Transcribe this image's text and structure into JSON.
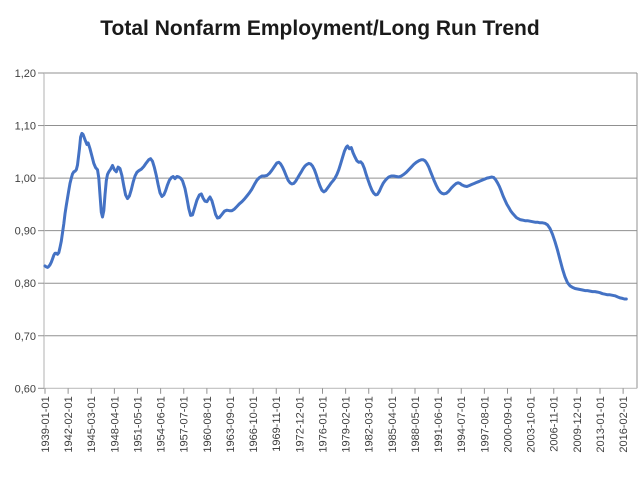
{
  "chart_data": {
    "type": "line",
    "title": "Total Nonfarm Employment/Long Run Trend",
    "x_axis": {
      "start_date": "1939-01-01",
      "frequency": "monthly",
      "unit": "months since 1939-01-01",
      "tick_interval_months": 37,
      "tick_labels": [
        "1939-01-01",
        "1942-02-01",
        "1945-03-01",
        "1948-04-01",
        "1951-05-01",
        "1954-06-01",
        "1957-07-01",
        "1960-08-01",
        "1963-09-01",
        "1966-10-01",
        "1969-11-01",
        "1972-12-01",
        "1976-01-01",
        "1979-02-01",
        "1982-03-01",
        "1985-04-01",
        "1988-05-01",
        "1991-06-01",
        "1994-07-01",
        "1997-08-01",
        "2000-09-01",
        "2003-10-01",
        "2006-11-01",
        "2009-12-01",
        "2013-01-01",
        "2016-02-01"
      ]
    },
    "y_axis": {
      "min": 0.6,
      "max": 1.2,
      "tick_step": 0.1,
      "decimal_separator": ",",
      "tick_labels": [
        "1,20",
        "1,10",
        "1,00",
        "0,90",
        "0,80",
        "0,70",
        "0,60"
      ],
      "tick_values": [
        1.2,
        1.1,
        1.0,
        0.9,
        0.8,
        0.7,
        0.6
      ]
    },
    "grid": true,
    "legend": false,
    "series": [
      {
        "name": "Total Nonfarm Employment / Long Run Trend",
        "color": "#4472C4",
        "points": [
          [
            0,
            0.833
          ],
          [
            2,
            0.831
          ],
          [
            4,
            0.83
          ],
          [
            6,
            0.832
          ],
          [
            8,
            0.835
          ],
          [
            10,
            0.84
          ],
          [
            12,
            0.846
          ],
          [
            14,
            0.853
          ],
          [
            16,
            0.857
          ],
          [
            18,
            0.857
          ],
          [
            20,
            0.855
          ],
          [
            22,
            0.858
          ],
          [
            24,
            0.868
          ],
          [
            26,
            0.88
          ],
          [
            28,
            0.896
          ],
          [
            30,
            0.913
          ],
          [
            32,
            0.932
          ],
          [
            34,
            0.948
          ],
          [
            36,
            0.962
          ],
          [
            38,
            0.977
          ],
          [
            40,
            0.99
          ],
          [
            42,
            1.0
          ],
          [
            44,
            1.008
          ],
          [
            46,
            1.012
          ],
          [
            48,
            1.013
          ],
          [
            50,
            1.016
          ],
          [
            52,
            1.025
          ],
          [
            55,
            1.055
          ],
          [
            57,
            1.078
          ],
          [
            59,
            1.085
          ],
          [
            61,
            1.083
          ],
          [
            64,
            1.073
          ],
          [
            67,
            1.064
          ],
          [
            69,
            1.067
          ],
          [
            72,
            1.056
          ],
          [
            75,
            1.042
          ],
          [
            78,
            1.028
          ],
          [
            81,
            1.02
          ],
          [
            84,
            1.016
          ],
          [
            86,
            1.0
          ],
          [
            88,
            0.968
          ],
          [
            90,
            0.935
          ],
          [
            92,
            0.926
          ],
          [
            94,
            0.938
          ],
          [
            96,
            0.968
          ],
          [
            98,
            0.995
          ],
          [
            100,
            1.007
          ],
          [
            102,
            1.012
          ],
          [
            105,
            1.017
          ],
          [
            108,
            1.024
          ],
          [
            111,
            1.016
          ],
          [
            114,
            1.012
          ],
          [
            117,
            1.021
          ],
          [
            120,
            1.018
          ],
          [
            123,
            1.005
          ],
          [
            126,
            0.985
          ],
          [
            129,
            0.968
          ],
          [
            132,
            0.961
          ],
          [
            135,
            0.966
          ],
          [
            138,
            0.978
          ],
          [
            141,
            0.992
          ],
          [
            144,
            1.004
          ],
          [
            147,
            1.011
          ],
          [
            150,
            1.014
          ],
          [
            154,
            1.017
          ],
          [
            158,
            1.022
          ],
          [
            162,
            1.029
          ],
          [
            166,
            1.035
          ],
          [
            169,
            1.037
          ],
          [
            172,
            1.032
          ],
          [
            175,
            1.02
          ],
          [
            178,
            1.005
          ],
          [
            181,
            0.988
          ],
          [
            184,
            0.972
          ],
          [
            187,
            0.965
          ],
          [
            190,
            0.968
          ],
          [
            193,
            0.976
          ],
          [
            196,
            0.987
          ],
          [
            199,
            0.996
          ],
          [
            202,
            1.001
          ],
          [
            205,
            1.003
          ],
          [
            208,
            0.999
          ],
          [
            211,
            1.003
          ],
          [
            214,
            1.002
          ],
          [
            217,
            1.0
          ],
          [
            220,
            0.995
          ],
          [
            224,
            0.98
          ],
          [
            227,
            0.962
          ],
          [
            230,
            0.942
          ],
          [
            233,
            0.929
          ],
          [
            236,
            0.93
          ],
          [
            239,
            0.942
          ],
          [
            243,
            0.958
          ],
          [
            247,
            0.968
          ],
          [
            250,
            0.97
          ],
          [
            253,
            0.962
          ],
          [
            256,
            0.956
          ],
          [
            259,
            0.955
          ],
          [
            262,
            0.961
          ],
          [
            264,
            0.964
          ],
          [
            267,
            0.957
          ],
          [
            270,
            0.944
          ],
          [
            273,
            0.931
          ],
          [
            276,
            0.924
          ],
          [
            279,
            0.925
          ],
          [
            283,
            0.931
          ],
          [
            287,
            0.937
          ],
          [
            291,
            0.939
          ],
          [
            295,
            0.938
          ],
          [
            299,
            0.938
          ],
          [
            303,
            0.941
          ],
          [
            307,
            0.946
          ],
          [
            311,
            0.951
          ],
          [
            315,
            0.955
          ],
          [
            319,
            0.96
          ],
          [
            323,
            0.966
          ],
          [
            327,
            0.972
          ],
          [
            331,
            0.979
          ],
          [
            335,
            0.988
          ],
          [
            339,
            0.996
          ],
          [
            343,
            1.001
          ],
          [
            347,
            1.004
          ],
          [
            351,
            1.004
          ],
          [
            355,
            1.005
          ],
          [
            359,
            1.009
          ],
          [
            363,
            1.015
          ],
          [
            367,
            1.022
          ],
          [
            371,
            1.029
          ],
          [
            374,
            1.03
          ],
          [
            377,
            1.027
          ],
          [
            380,
            1.021
          ],
          [
            383,
            1.013
          ],
          [
            386,
            1.004
          ],
          [
            389,
            0.996
          ],
          [
            392,
            0.991
          ],
          [
            395,
            0.989
          ],
          [
            398,
            0.99
          ],
          [
            401,
            0.994
          ],
          [
            404,
            1.0
          ],
          [
            407,
            1.006
          ],
          [
            410,
            1.012
          ],
          [
            413,
            1.018
          ],
          [
            416,
            1.023
          ],
          [
            419,
            1.026
          ],
          [
            422,
            1.028
          ],
          [
            425,
            1.027
          ],
          [
            428,
            1.023
          ],
          [
            431,
            1.016
          ],
          [
            434,
            1.006
          ],
          [
            437,
            0.995
          ],
          [
            440,
            0.985
          ],
          [
            443,
            0.977
          ],
          [
            446,
            0.974
          ],
          [
            449,
            0.976
          ],
          [
            452,
            0.981
          ],
          [
            455,
            0.986
          ],
          [
            458,
            0.991
          ],
          [
            461,
            0.995
          ],
          [
            464,
            1.0
          ],
          [
            467,
            1.007
          ],
          [
            470,
            1.016
          ],
          [
            473,
            1.027
          ],
          [
            476,
            1.039
          ],
          [
            479,
            1.051
          ],
          [
            482,
            1.059
          ],
          [
            484,
            1.061
          ],
          [
            487,
            1.056
          ],
          [
            490,
            1.058
          ],
          [
            493,
            1.048
          ],
          [
            496,
            1.04
          ],
          [
            499,
            1.033
          ],
          [
            502,
            1.03
          ],
          [
            505,
            1.031
          ],
          [
            508,
            1.027
          ],
          [
            511,
            1.018
          ],
          [
            514,
            1.006
          ],
          [
            517,
            0.996
          ],
          [
            520,
            0.986
          ],
          [
            523,
            0.977
          ],
          [
            526,
            0.971
          ],
          [
            529,
            0.968
          ],
          [
            532,
            0.969
          ],
          [
            535,
            0.975
          ],
          [
            538,
            0.983
          ],
          [
            541,
            0.99
          ],
          [
            544,
            0.995
          ],
          [
            547,
            0.999
          ],
          [
            550,
            1.002
          ],
          [
            554,
            1.004
          ],
          [
            558,
            1.004
          ],
          [
            562,
            1.003
          ],
          [
            566,
            1.002
          ],
          [
            570,
            1.004
          ],
          [
            574,
            1.007
          ],
          [
            578,
            1.011
          ],
          [
            582,
            1.016
          ],
          [
            586,
            1.021
          ],
          [
            590,
            1.026
          ],
          [
            594,
            1.03
          ],
          [
            598,
            1.033
          ],
          [
            602,
            1.035
          ],
          [
            605,
            1.035
          ],
          [
            608,
            1.033
          ],
          [
            611,
            1.028
          ],
          [
            614,
            1.021
          ],
          [
            617,
            1.012
          ],
          [
            620,
            1.003
          ],
          [
            623,
            0.994
          ],
          [
            626,
            0.986
          ],
          [
            629,
            0.979
          ],
          [
            632,
            0.974
          ],
          [
            635,
            0.971
          ],
          [
            638,
            0.97
          ],
          [
            642,
            0.971
          ],
          [
            646,
            0.975
          ],
          [
            650,
            0.981
          ],
          [
            654,
            0.986
          ],
          [
            658,
            0.99
          ],
          [
            661,
            0.991
          ],
          [
            664,
            0.99
          ],
          [
            667,
            0.987
          ],
          [
            671,
            0.985
          ],
          [
            675,
            0.984
          ],
          [
            679,
            0.986
          ],
          [
            683,
            0.988
          ],
          [
            687,
            0.99
          ],
          [
            691,
            0.992
          ],
          [
            695,
            0.994
          ],
          [
            699,
            0.996
          ],
          [
            703,
            0.998
          ],
          [
            707,
            1.0
          ],
          [
            711,
            1.001
          ],
          [
            715,
            1.002
          ],
          [
            718,
            1.001
          ],
          [
            721,
            0.997
          ],
          [
            724,
            0.991
          ],
          [
            727,
            0.984
          ],
          [
            730,
            0.975
          ],
          [
            733,
            0.966
          ],
          [
            736,
            0.958
          ],
          [
            739,
            0.95
          ],
          [
            742,
            0.944
          ],
          [
            745,
            0.938
          ],
          [
            748,
            0.933
          ],
          [
            751,
            0.929
          ],
          [
            754,
            0.925
          ],
          [
            757,
            0.923
          ],
          [
            760,
            0.921
          ],
          [
            764,
            0.92
          ],
          [
            768,
            0.919
          ],
          [
            772,
            0.919
          ],
          [
            776,
            0.918
          ],
          [
            780,
            0.917
          ],
          [
            784,
            0.916
          ],
          [
            788,
            0.916
          ],
          [
            792,
            0.915
          ],
          [
            796,
            0.915
          ],
          [
            800,
            0.914
          ],
          [
            804,
            0.911
          ],
          [
            808,
            0.904
          ],
          [
            812,
            0.893
          ],
          [
            816,
            0.879
          ],
          [
            820,
            0.863
          ],
          [
            824,
            0.845
          ],
          [
            828,
            0.827
          ],
          [
            832,
            0.812
          ],
          [
            836,
            0.801
          ],
          [
            840,
            0.795
          ],
          [
            844,
            0.792
          ],
          [
            848,
            0.79
          ],
          [
            852,
            0.789
          ],
          [
            856,
            0.788
          ],
          [
            860,
            0.787
          ],
          [
            864,
            0.786
          ],
          [
            868,
            0.786
          ],
          [
            872,
            0.785
          ],
          [
            876,
            0.784
          ],
          [
            880,
            0.784
          ],
          [
            884,
            0.783
          ],
          [
            888,
            0.782
          ],
          [
            892,
            0.78
          ],
          [
            896,
            0.779
          ],
          [
            900,
            0.778
          ],
          [
            904,
            0.778
          ],
          [
            908,
            0.777
          ],
          [
            912,
            0.776
          ],
          [
            916,
            0.774
          ],
          [
            920,
            0.772
          ],
          [
            924,
            0.771
          ],
          [
            927,
            0.77
          ],
          [
            930,
            0.77
          ]
        ]
      }
    ]
  },
  "colors": {
    "line": "#4472C4",
    "gridline": "#909090",
    "axis_line": "#BFBFBF",
    "tick": "#909090",
    "tick_label": "#404040",
    "title": "#1A1A1A",
    "background": "#FFFFFF"
  }
}
